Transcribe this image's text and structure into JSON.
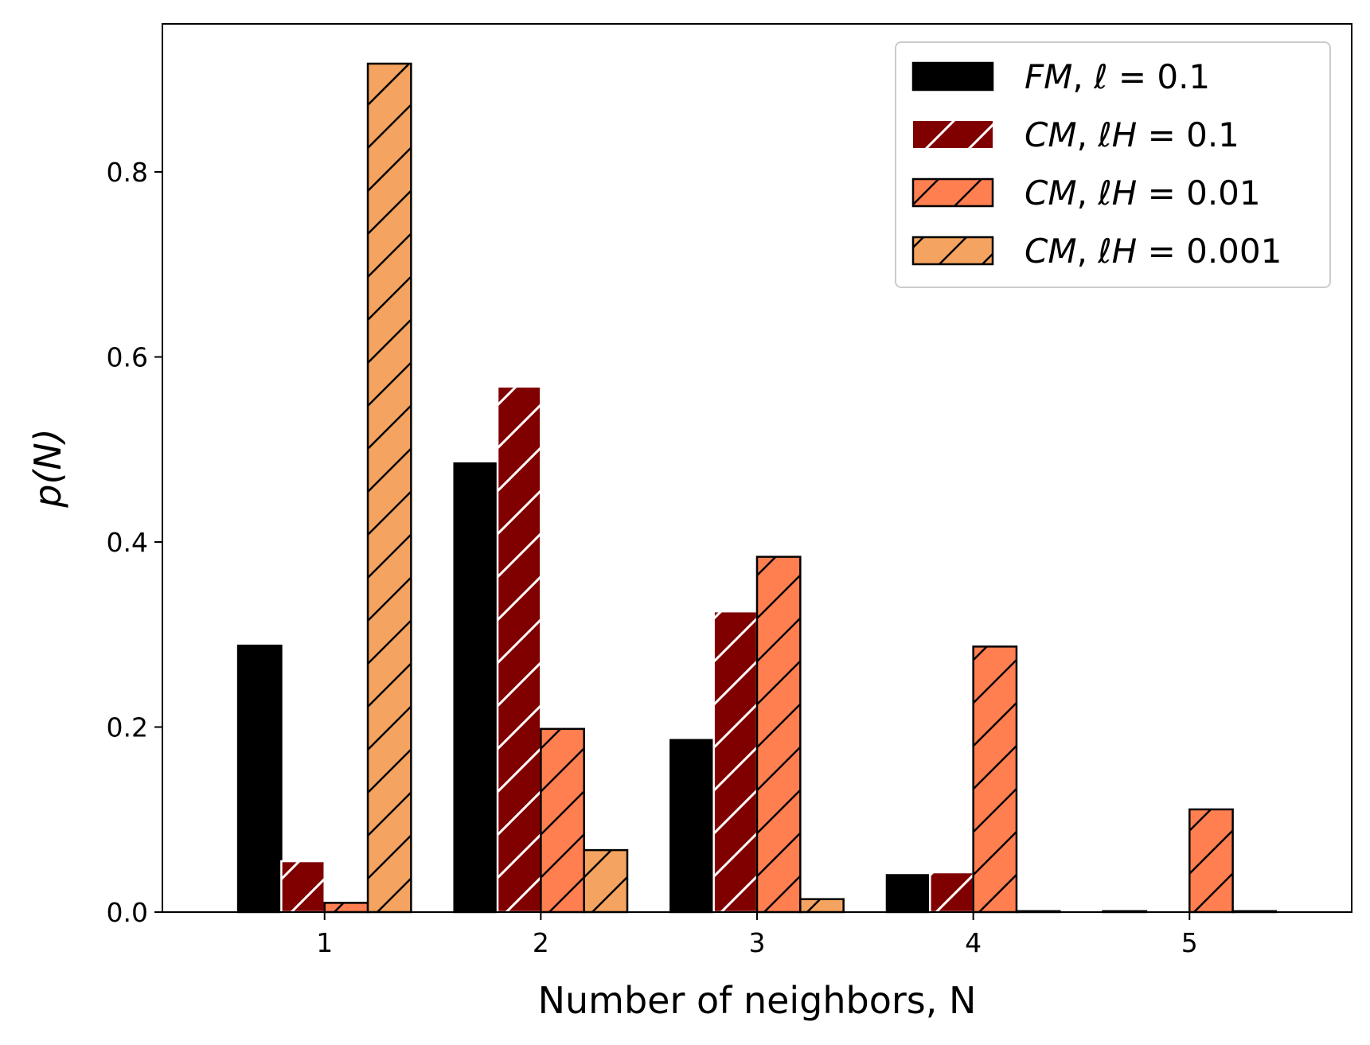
{
  "chart_data": {
    "type": "bar",
    "xlabel": "Number of neighbors, N",
    "ylabel": "p(N)",
    "categories": [
      "1",
      "2",
      "3",
      "4",
      "5"
    ],
    "xlim": [
      0.25,
      5.75
    ],
    "ylim": [
      0,
      0.96
    ],
    "yticks": [
      0.0,
      0.2,
      0.4,
      0.6,
      0.8
    ],
    "ytick_labels": [
      "0.0",
      "0.2",
      "0.4",
      "0.6",
      "0.8"
    ],
    "grid": false,
    "legend_position": "top-right",
    "series": [
      {
        "name": "FM, ℓ = 0.1",
        "legend": {
          "lead": "FM",
          "mid": "ℓ",
          "value": "0.1"
        },
        "values": [
          0.288,
          0.485,
          0.186,
          0.04,
          0.001
        ],
        "color": "#000000",
        "edge": "#000000",
        "hatch": "none"
      },
      {
        "name": "CM, ℓH = 0.1",
        "legend": {
          "lead": "CM",
          "mid": "ℓH",
          "value": "0.1"
        },
        "values": [
          0.055,
          0.568,
          0.325,
          0.043,
          0.0
        ],
        "color": "#800000",
        "edge": "#ffffff",
        "hatch": "white"
      },
      {
        "name": "CM, ℓH = 0.01",
        "legend": {
          "lead": "CM",
          "mid": "ℓH",
          "value": "0.01"
        },
        "values": [
          0.01,
          0.198,
          0.384,
          0.287,
          0.111
        ],
        "color": "#ff7f50",
        "edge": "#000000",
        "hatch": "black"
      },
      {
        "name": "CM, ℓH = 0.001",
        "legend": {
          "lead": "CM",
          "mid": "ℓH",
          "value": "0.001"
        },
        "values": [
          0.917,
          0.067,
          0.014,
          0.001,
          0.001
        ],
        "color": "#f4a460",
        "edge": "#000000",
        "hatch": "black"
      }
    ]
  }
}
